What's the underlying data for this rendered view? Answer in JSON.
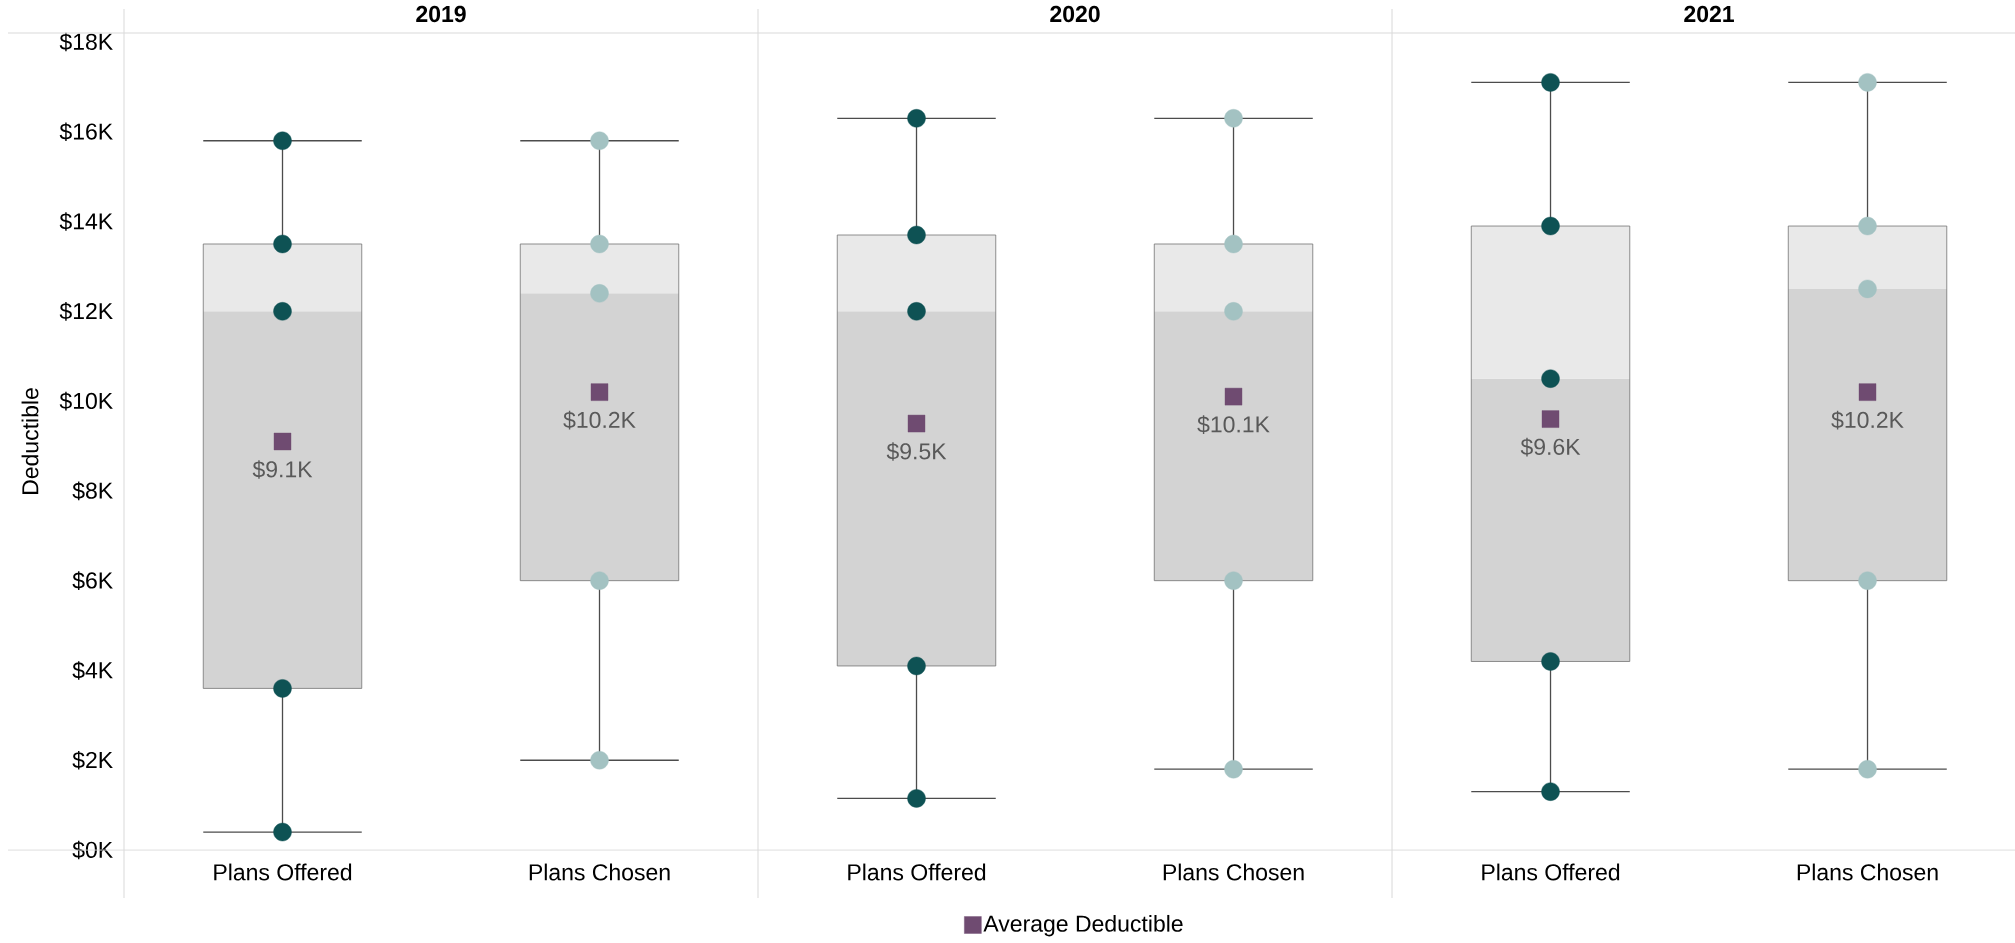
{
  "chart_data": [
    {
      "type": "box",
      "title": "2019",
      "ylabel": "Deductible",
      "categories": [
        "Plans Offered",
        "Plans Chosen"
      ],
      "colors": [
        "#d3d3d3",
        "#d3d3d3"
      ],
      "ylim": [
        0,
        18.2
      ],
      "yticks": [
        {
          "value": 0,
          "label": "$0K"
        },
        {
          "value": 2,
          "label": "$2K"
        },
        {
          "value": 4,
          "label": "$4K"
        },
        {
          "value": 6,
          "label": "$6K"
        },
        {
          "value": 8,
          "label": "$8K"
        },
        {
          "value": 10,
          "label": "$10K"
        },
        {
          "value": 12,
          "label": "$12K"
        },
        {
          "value": 14,
          "label": "$14K"
        },
        {
          "value": 16,
          "label": "$16K"
        },
        {
          "value": 18,
          "label": "$18K"
        }
      ],
      "boxes": [
        {
          "low": 0.4,
          "q1": 3.6,
          "median": 12.0,
          "q3": 13.5,
          "high": 15.8
        },
        {
          "low": 2.0,
          "q1": 6.0,
          "median": 12.4,
          "q3": 13.5,
          "high": 15.8
        }
      ],
      "series": [
        {
          "type": "scatter",
          "x": [
            "Plans Offered",
            "Plans Offered",
            "Plans Offered",
            "Plans Offered",
            "Plans Offered"
          ],
          "values": [
            0.4,
            3.6,
            12.0,
            13.5,
            15.8
          ],
          "color": "#0e5254",
          "marker": "circle"
        },
        {
          "type": "scatter",
          "x": [
            "Plans Chosen",
            "Plans Chosen",
            "Plans Chosen",
            "Plans Chosen",
            "Plans Chosen"
          ],
          "values": [
            2.0,
            6.0,
            12.4,
            13.5,
            15.8
          ],
          "color": "#a3c2c2",
          "marker": "circle"
        },
        {
          "type": "scatter",
          "x": [
            "Plans Offered",
            "Plans Chosen"
          ],
          "values": [
            9.1,
            10.2
          ],
          "value_labels": [
            "$9.1K",
            "$10.2K"
          ],
          "color": "#6f4b71",
          "marker": "square"
        }
      ]
    },
    {
      "type": "box",
      "title": "2020",
      "categories": [
        "Plans Offered",
        "Plans Chosen"
      ],
      "colors": [
        "#d3d3d3",
        "#d3d3d3"
      ],
      "ylim": [
        0,
        18.2
      ],
      "tick_labels": "x",
      "legend": "bottom",
      "boxes": [
        {
          "low": 1.15,
          "q1": 4.1,
          "median": 12.0,
          "q3": 13.7,
          "high": 16.3
        },
        {
          "low": 1.8,
          "q1": 6.0,
          "median": 12.0,
          "q3": 13.5,
          "high": 16.3
        }
      ],
      "series": [
        {
          "type": "scatter",
          "x": [
            "Plans Offered",
            "Plans Offered",
            "Plans Offered",
            "Plans Offered",
            "Plans Offered"
          ],
          "values": [
            1.15,
            4.1,
            12.0,
            13.7,
            16.3
          ],
          "color": "#0e5254",
          "marker": "circle"
        },
        {
          "type": "scatter",
          "x": [
            "Plans Chosen",
            "Plans Chosen",
            "Plans Chosen",
            "Plans Chosen",
            "Plans Chosen"
          ],
          "values": [
            1.8,
            6.0,
            12.0,
            13.5,
            16.3
          ],
          "color": "#a3c2c2",
          "marker": "circle"
        },
        {
          "type": "scatter",
          "name": "Average Deductible",
          "x": [
            "Plans Offered",
            "Plans Chosen"
          ],
          "values": [
            9.5,
            10.1
          ],
          "value_labels": [
            "$9.5K",
            "$10.1K"
          ],
          "color": "#6f4b71",
          "marker": "square"
        }
      ]
    },
    {
      "type": "box",
      "title": "2021",
      "categories": [
        "Plans Offered",
        "Plans Chosen"
      ],
      "colors": [
        "#d3d3d3",
        "#d3d3d3"
      ],
      "ylim": [
        0,
        18.2
      ],
      "tick_labels": "x",
      "boxes": [
        {
          "low": 1.3,
          "q1": 4.2,
          "median": 10.5,
          "q3": 13.9,
          "high": 17.1
        },
        {
          "low": 1.8,
          "q1": 6.0,
          "median": 12.5,
          "q3": 13.9,
          "high": 17.1
        }
      ],
      "series": [
        {
          "type": "scatter",
          "x": [
            "Plans Offered",
            "Plans Offered",
            "Plans Offered",
            "Plans Offered",
            "Plans Offered"
          ],
          "values": [
            1.3,
            4.2,
            10.5,
            13.9,
            17.1
          ],
          "color": "#0e5254",
          "marker": "circle"
        },
        {
          "type": "scatter",
          "x": [
            "Plans Chosen",
            "Plans Chosen",
            "Plans Chosen",
            "Plans Chosen",
            "Plans Chosen"
          ],
          "values": [
            1.8,
            6.0,
            12.5,
            13.9,
            17.1
          ],
          "color": "#a3c2c2",
          "marker": "circle"
        },
        {
          "type": "scatter",
          "x": [
            "Plans Offered",
            "Plans Chosen"
          ],
          "values": [
            9.6,
            10.2
          ],
          "value_labels": [
            "$9.6K",
            "$10.2K"
          ],
          "color": "#6f4b71",
          "marker": "square"
        }
      ]
    }
  ]
}
